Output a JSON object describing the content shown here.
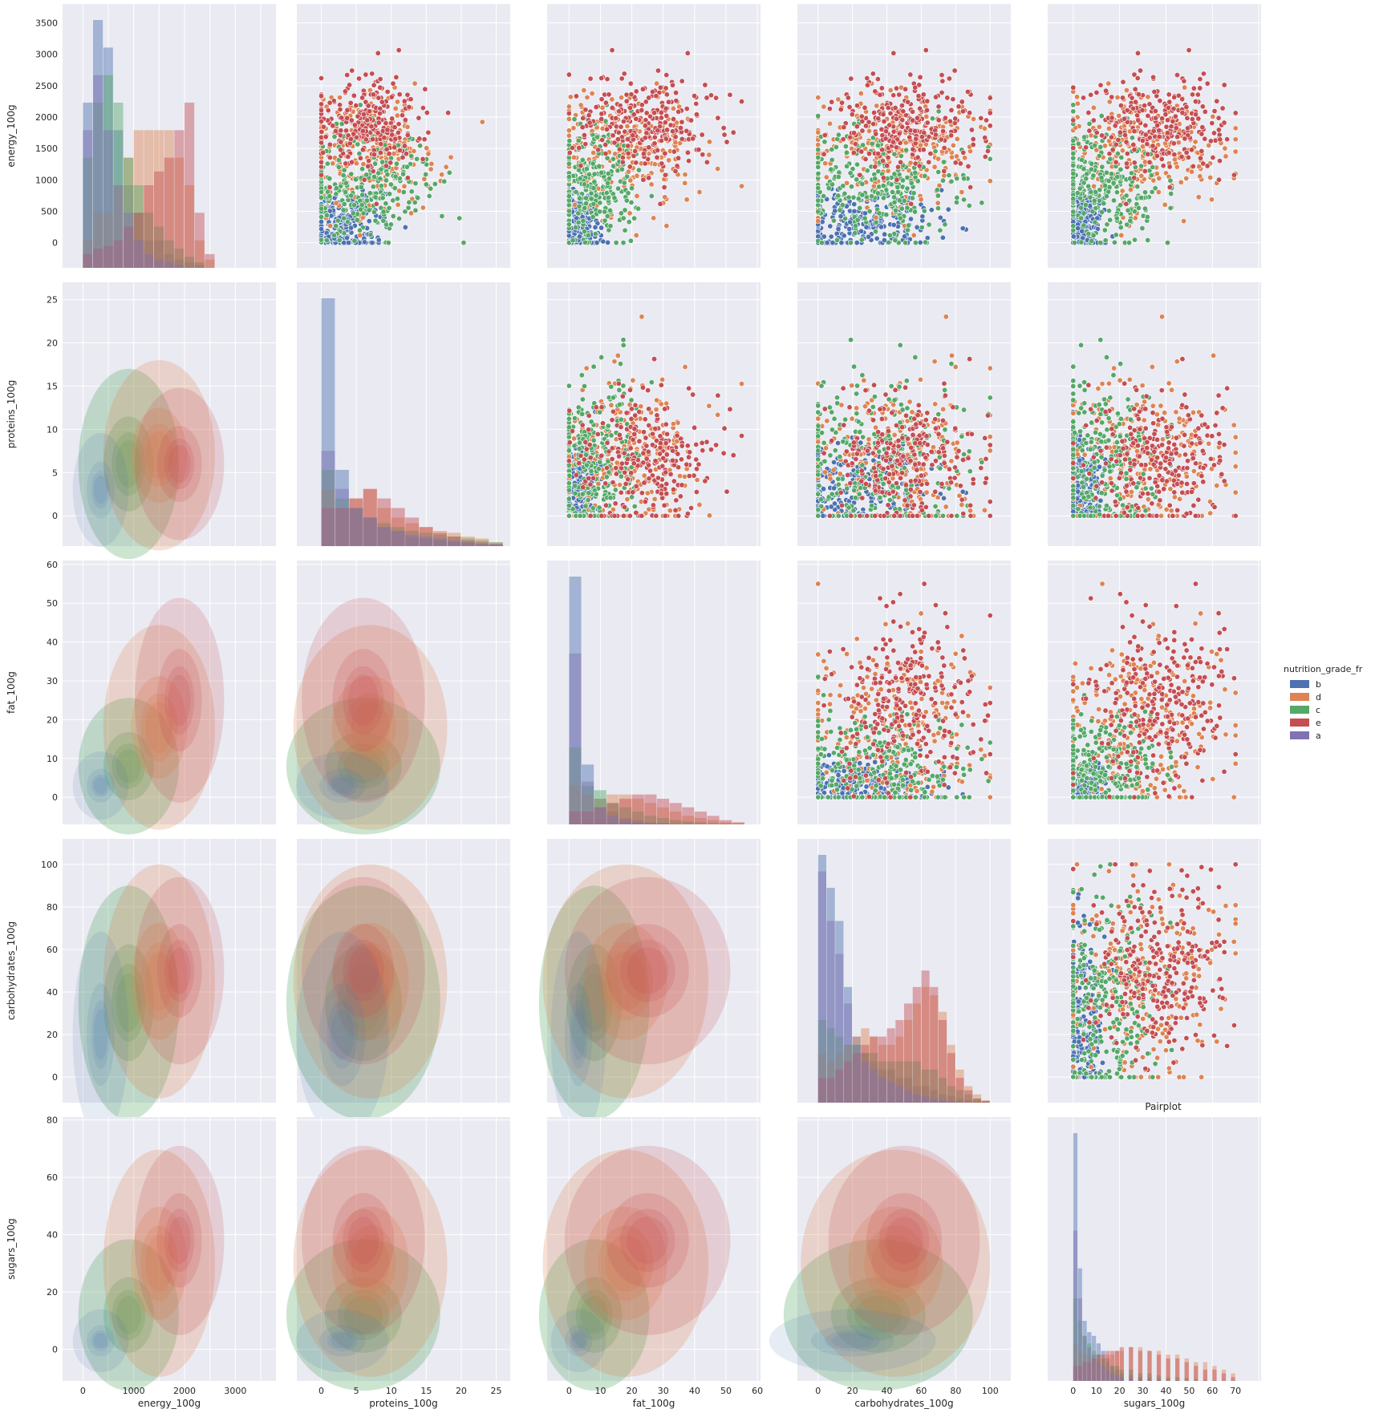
{
  "chart_data": {
    "type": "pairplot",
    "title": "Pairplot",
    "hue_label": "nutrition_grade_fr",
    "hue_levels": [
      {
        "name": "b",
        "color": "#4c72b0"
      },
      {
        "name": "d",
        "color": "#dd8452"
      },
      {
        "name": "c",
        "color": "#55a868"
      },
      {
        "name": "e",
        "color": "#c44e52"
      },
      {
        "name": "a",
        "color": "#8172b3"
      }
    ],
    "upper": "scatter",
    "diag": "histogram",
    "lower": "kde",
    "variables": [
      {
        "name": "energy_100g",
        "range": [
          -400,
          3800
        ],
        "ticks": [
          0,
          500,
          1000,
          1500,
          2000,
          2500,
          3000,
          3500
        ],
        "bottom_ticks": [
          0,
          1000,
          2000,
          3000
        ]
      },
      {
        "name": "proteins_100g",
        "range": [
          -3.5,
          27
        ],
        "ticks": [
          0,
          5,
          10,
          15,
          20,
          25
        ],
        "bottom_ticks": [
          0,
          5,
          10,
          15,
          20,
          25
        ]
      },
      {
        "name": "fat_100g",
        "range": [
          -7,
          61
        ],
        "ticks": [
          0,
          10,
          20,
          30,
          40,
          50,
          60
        ],
        "bottom_ticks": [
          0,
          10,
          20,
          30,
          40,
          50,
          60
        ]
      },
      {
        "name": "carbohydrates_100g",
        "range": [
          -12,
          112
        ],
        "ticks": [
          0,
          20,
          40,
          60,
          80,
          100
        ],
        "bottom_ticks": [
          0,
          20,
          40,
          60,
          80,
          100
        ]
      },
      {
        "name": "sugars_100g",
        "range": [
          -11,
          81
        ],
        "ticks": [
          0,
          20,
          40,
          60,
          80
        ],
        "bottom_ticks": [
          0,
          10,
          20,
          30,
          40,
          50,
          60,
          70
        ]
      }
    ],
    "diag_histograms": [
      {
        "bins": [
          0,
          200,
          400,
          600,
          800,
          1000,
          1200,
          1400,
          1600,
          1800,
          2000,
          2200,
          2400
        ],
        "series": [
          {
            "name": "b",
            "values": [
              6,
              9,
              8,
              5,
              3,
              2,
              1,
              1,
              0.5,
              0.3,
              0.2,
              0.1,
              0
            ]
          },
          {
            "name": "d",
            "values": [
              1,
              2,
              2,
              3,
              4,
              5,
              5,
              5,
              5,
              4,
              3,
              1,
              0.3
            ]
          },
          {
            "name": "c",
            "values": [
              4,
              6,
              7,
              6,
              4,
              3,
              2,
              1.5,
              1,
              0.7,
              0.4,
              0.2,
              0
            ]
          },
          {
            "name": "e",
            "values": [
              0.5,
              0.7,
              0.8,
              1,
              1.5,
              2,
              3,
              3.5,
              4,
              5,
              6,
              2,
              0.5
            ]
          },
          {
            "name": "a",
            "values": [
              5,
              7,
              5,
              3,
              2,
              1,
              0.5,
              0.3,
              0.2,
              0.1,
              0,
              0,
              0
            ]
          }
        ]
      },
      {
        "bins": [
          0,
          2,
          4,
          6,
          8,
          10,
          12,
          14,
          16,
          18,
          20,
          22,
          24
        ],
        "series": [
          {
            "name": "b",
            "values": [
              13,
              4,
              2,
              1.5,
              1,
              0.8,
              0.5,
              0.4,
              0.3,
              0.2,
              0.2,
              0.1,
              0.1
            ]
          },
          {
            "name": "d",
            "values": [
              3,
              2,
              2.5,
              3,
              2,
              1.5,
              1.2,
              1,
              0.8,
              0.7,
              0.5,
              0.4,
              0.2
            ]
          },
          {
            "name": "c",
            "values": [
              4,
              2.5,
              2,
              1.5,
              1.2,
              1,
              0.8,
              0.7,
              0.6,
              0.5,
              0.4,
              0.3,
              0.2
            ]
          },
          {
            "name": "e",
            "values": [
              2,
              2,
              2.5,
              3,
              2.5,
              2,
              1.5,
              1,
              0.7,
              0.5,
              0.3,
              0.2,
              0.1
            ]
          },
          {
            "name": "a",
            "values": [
              5,
              3,
              2,
              1.5,
              1,
              0.8,
              0.6,
              0.5,
              0.4,
              0.3,
              0.2,
              0.1,
              0.1
            ]
          }
        ]
      },
      {
        "bins": [
          0,
          4,
          8,
          12,
          16,
          20,
          24,
          28,
          32,
          36,
          40,
          44,
          48,
          52
        ],
        "series": [
          {
            "name": "b",
            "values": [
              58,
              14,
              6,
              3,
              1.5,
              1,
              0.5,
              0.3,
              0.2,
              0.1,
              0,
              0,
              0,
              0
            ]
          },
          {
            "name": "d",
            "values": [
              9,
              7,
              6,
              7,
              7,
              6,
              5,
              4,
              3,
              2,
              1.5,
              1,
              0.5,
              0.3
            ]
          },
          {
            "name": "c",
            "values": [
              18,
              9,
              8,
              5,
              4,
              3,
              2,
              1.5,
              1,
              0.7,
              0.5,
              0.3,
              0.2,
              0.1
            ]
          },
          {
            "name": "e",
            "values": [
              3,
              3,
              4,
              5,
              6,
              7,
              7,
              6,
              5,
              4,
              3,
              2,
              1,
              0.5
            ]
          },
          {
            "name": "a",
            "values": [
              40,
              10,
              4,
              2,
              1,
              0.5,
              0.3,
              0.2,
              0,
              0,
              0,
              0,
              0,
              0
            ]
          }
        ]
      },
      {
        "bins": [
          0,
          5,
          10,
          15,
          20,
          25,
          30,
          35,
          40,
          45,
          50,
          55,
          60,
          65,
          70,
          75,
          80,
          85,
          90,
          95
        ],
        "series": [
          {
            "name": "b",
            "values": [
              30,
              26,
              22,
              14,
              8,
              6,
              5,
              4,
              4,
              3,
              3,
              2,
              2,
              1.5,
              1,
              0.8,
              0.5,
              0.3,
              0.2,
              0.1
            ]
          },
          {
            "name": "d",
            "values": [
              6,
              5,
              6,
              7,
              8,
              9,
              8,
              7,
              7,
              8,
              10,
              12,
              14,
              13,
              11,
              7,
              4,
              2,
              1,
              0.3
            ]
          },
          {
            "name": "c",
            "values": [
              10,
              9,
              8,
              7,
              7,
              6,
              6,
              5,
              5,
              5,
              5,
              5,
              4,
              4,
              3,
              2,
              1.5,
              1,
              0.5,
              0.2
            ]
          },
          {
            "name": "e",
            "values": [
              3,
              3,
              4,
              5,
              6,
              7,
              8,
              8,
              9,
              10,
              12,
              14,
              16,
              14,
              10,
              6,
              3,
              1.5,
              0.5,
              0.2
            ]
          },
          {
            "name": "a",
            "values": [
              28,
              22,
              18,
              12,
              7,
              5,
              4,
              3,
              2.5,
              2,
              1.5,
              1,
              0.8,
              0.5,
              0.3,
              0.2,
              0.1,
              0,
              0,
              0
            ]
          }
        ]
      },
      {
        "bins": [
          0,
          2,
          4,
          6,
          8,
          10,
          12,
          14,
          16,
          18,
          20,
          24,
          28,
          32,
          36,
          40,
          44,
          48,
          52,
          56,
          60,
          64,
          68
        ],
        "series": [
          {
            "name": "b",
            "values": [
              66,
              30,
              16,
              13,
              12,
              10,
              8,
              6,
              4,
              3,
              2,
              1.5,
              1,
              0.8,
              0.5,
              0.3,
              0.2,
              0.1,
              0,
              0,
              0,
              0,
              0
            ]
          },
          {
            "name": "d",
            "values": [
              10,
              8,
              7,
              7,
              6,
              6,
              6,
              7,
              7,
              8,
              8,
              9,
              9,
              8,
              8,
              7,
              7,
              6,
              5,
              5,
              4,
              3,
              2
            ]
          },
          {
            "name": "c",
            "values": [
              22,
              16,
              12,
              10,
              8,
              7,
              6,
              5,
              4,
              4,
              3,
              3,
              2,
              2,
              1.5,
              1,
              1,
              0.8,
              0.5,
              0.3,
              0.2,
              0.1,
              0
            ]
          },
          {
            "name": "e",
            "values": [
              4,
              4,
              5,
              5,
              6,
              7,
              7,
              8,
              8,
              8,
              9,
              9,
              8,
              8,
              7,
              6,
              6,
              5,
              4,
              3,
              3,
              2,
              1
            ]
          },
          {
            "name": "a",
            "values": [
              40,
              22,
              12,
              9,
              7,
              5,
              4,
              3,
              2,
              1.5,
              1,
              0.5,
              0.3,
              0.2,
              0.1,
              0,
              0,
              0,
              0,
              0,
              0,
              0,
              0
            ]
          }
        ]
      }
    ],
    "grid": true,
    "legend_position": "right"
  }
}
